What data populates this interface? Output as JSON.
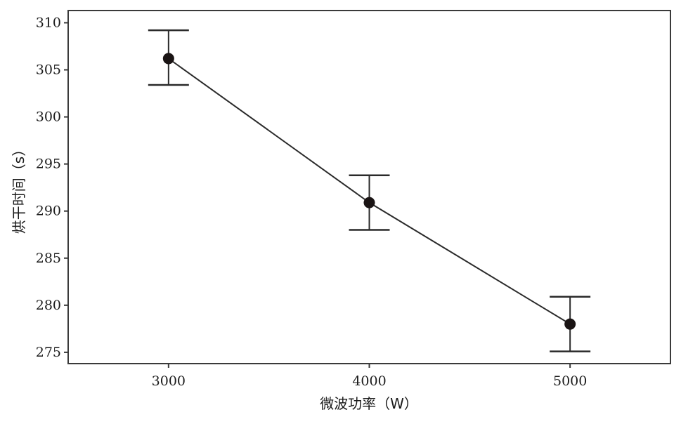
{
  "chart_data": {
    "type": "line",
    "xlabel": "微波功率（W）",
    "ylabel": "烘干时间（s）",
    "x": [
      3000,
      4000,
      5000
    ],
    "y": [
      306.2,
      290.9,
      278.0
    ],
    "error_low": [
      303.4,
      288.0,
      275.1
    ],
    "error_high": [
      309.2,
      293.8,
      280.9
    ],
    "xlim": [
      2500,
      5500
    ],
    "ylim": [
      273.8,
      311.3
    ],
    "xticks": [
      "3000",
      "4000",
      "5000"
    ],
    "yticks": [
      "275",
      "280",
      "285",
      "290",
      "295",
      "300",
      "305",
      "310"
    ],
    "grid": false,
    "legend": "none"
  },
  "colors": {
    "line": "#2a2a2a",
    "marker": "#1a1414",
    "frame": "#3a3a3a"
  }
}
